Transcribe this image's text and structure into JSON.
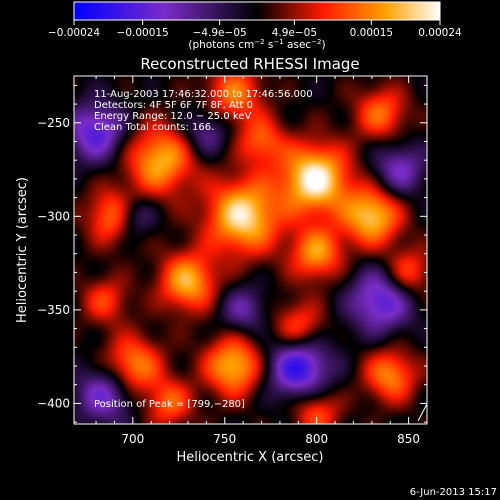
{
  "chart_data": {
    "type": "heatmap",
    "title": "Reconstructed RHESSI Image",
    "xlabel": "Heliocentric X (arcsec)",
    "ylabel": "Heliocentric Y (arcsec)",
    "xlim": [
      668,
      860
    ],
    "ylim": [
      -411,
      -225
    ],
    "x_ticks": [
      700,
      750,
      800,
      850
    ],
    "y_ticks": [
      -250,
      -300,
      -350,
      -400
    ],
    "x_tick_labels": [
      "700",
      "750",
      "800",
      "850"
    ],
    "y_tick_labels": [
      "−250",
      "−300",
      "−350",
      "−400"
    ],
    "colorbar": {
      "range": [
        -0.00024,
        0.00024
      ],
      "tick_labels": [
        "−0.00024",
        "−0.00015",
        "−4.9e−05",
        "4.9e−05",
        "0.00015",
        "0.00024"
      ],
      "tick_values": [
        -0.00024,
        -0.00015,
        -4.9e-05,
        4.9e-05,
        0.00015,
        0.00024
      ],
      "unit_label_parts": [
        "(photons cm",
        "−2",
        " s",
        "−1",
        " asec",
        "−2",
        ")"
      ]
    },
    "annotation_lines": [
      "11-Aug-2003 17:46:32.000 to 17:46:56.000",
      "Detectors: 4F 5F 6F 7F 8F, Att 0",
      "Energy Range: 12.0 − 25.0 keV",
      "Clean    Total counts: 166."
    ],
    "peak_label": "Position of Peak = [799,−280]",
    "peak": [
      799,
      -280
    ],
    "blobs": [
      [
        799,
        -280,
        0.00024,
        13
      ],
      [
        830,
        -300,
        0.0002,
        11
      ],
      [
        760,
        -300,
        0.00022,
        14
      ],
      [
        715,
        -270,
        0.00018,
        13
      ],
      [
        690,
        -300,
        0.00016,
        10
      ],
      [
        730,
        -335,
        0.00018,
        11
      ],
      [
        800,
        -320,
        0.00016,
        10
      ],
      [
        755,
        -235,
        0.00014,
        11
      ],
      [
        835,
        -245,
        0.00013,
        10
      ],
      [
        700,
        -380,
        0.00016,
        11
      ],
      [
        755,
        -380,
        0.00019,
        11
      ],
      [
        790,
        -360,
        0.00013,
        10
      ],
      [
        840,
        -385,
        0.00015,
        10
      ],
      [
        720,
        -400,
        0.00012,
        9
      ],
      [
        800,
        -405,
        0.00012,
        9
      ],
      [
        850,
        -330,
        0.00012,
        9
      ],
      [
        770,
        -260,
        0.00012,
        9
      ],
      [
        685,
        -345,
        0.0001,
        9
      ],
      [
        680,
        -255,
        -0.00016,
        11
      ],
      [
        740,
        -255,
        -0.0001,
        9
      ],
      [
        685,
        -395,
        -0.00014,
        11
      ],
      [
        790,
        -380,
        -0.0002,
        12
      ],
      [
        835,
        -345,
        -0.00016,
        12
      ],
      [
        845,
        -275,
        -0.00012,
        10
      ],
      [
        760,
        -350,
        -0.0001,
        9
      ],
      [
        700,
        -300,
        -0.00012,
        8
      ]
    ]
  },
  "footer": {
    "timestamp": "6-Jun-2013 15:17"
  }
}
